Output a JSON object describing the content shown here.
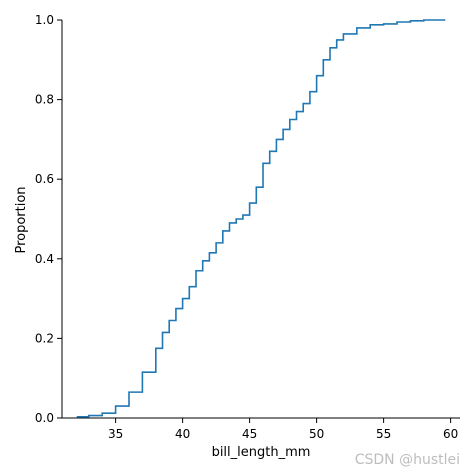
{
  "chart_data": {
    "type": "line",
    "subtype": "ecdf",
    "title": "",
    "xlabel": "bill_length_mm",
    "ylabel": "Proportion",
    "xlim": [
      31.0,
      60.7
    ],
    "ylim": [
      0.0,
      1.0
    ],
    "xticks": [
      35,
      40,
      45,
      50,
      55,
      60
    ],
    "yticks": [
      0.0,
      0.2,
      0.4,
      0.6,
      0.8,
      1.0
    ],
    "xtick_labels": [
      "35",
      "40",
      "45",
      "50",
      "55",
      "60"
    ],
    "ytick_labels": [
      "0.0",
      "0.2",
      "0.4",
      "0.6",
      "0.8",
      "1.0"
    ],
    "grid": false,
    "legend": "none",
    "series": [
      {
        "color": "#1f77b4",
        "x": [
          32.1,
          33.0,
          34.0,
          35.0,
          36.0,
          37.0,
          38.0,
          38.5,
          39.0,
          39.5,
          40.0,
          40.5,
          41.0,
          41.5,
          42.0,
          42.5,
          43.0,
          43.5,
          44.0,
          44.5,
          45.0,
          45.5,
          46.0,
          46.5,
          47.0,
          47.5,
          48.0,
          48.5,
          49.0,
          49.5,
          50.0,
          50.5,
          51.0,
          51.5,
          52.0,
          53.0,
          54.0,
          55.0,
          56.0,
          57.0,
          58.0,
          59.6
        ],
        "y": [
          0.003,
          0.006,
          0.012,
          0.03,
          0.065,
          0.115,
          0.175,
          0.215,
          0.245,
          0.275,
          0.3,
          0.33,
          0.37,
          0.395,
          0.415,
          0.44,
          0.47,
          0.49,
          0.5,
          0.51,
          0.54,
          0.58,
          0.64,
          0.67,
          0.7,
          0.725,
          0.75,
          0.77,
          0.79,
          0.82,
          0.86,
          0.9,
          0.93,
          0.95,
          0.965,
          0.98,
          0.988,
          0.99,
          0.995,
          0.998,
          1.0,
          1.0
        ]
      }
    ]
  },
  "watermark": "CSDN @hustlei"
}
